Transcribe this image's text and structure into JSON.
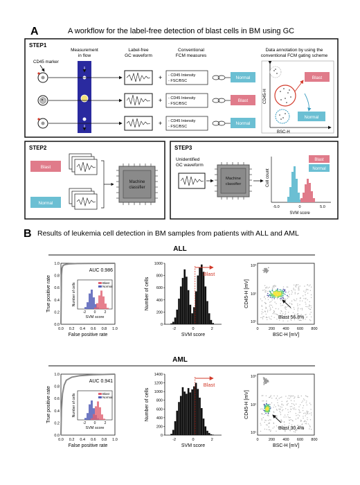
{
  "panelA": {
    "letter": "A",
    "title": "A workflow for the label-free detection of blast cells in BM using GC",
    "step1": {
      "label": "STEP1",
      "cd45_marker": "CD45 marker",
      "col_measure": [
        "Measurement",
        "in flow"
      ],
      "col_waveform": [
        "Label-free",
        "GC waveform"
      ],
      "col_fcm": [
        "Conventional",
        "FCM measures"
      ],
      "col_annotation": [
        "Data annotation by using the",
        "conventional FCM gating scheme"
      ],
      "plus": "+",
      "fcm_lines": [
        "- CD45 Intensity",
        "- FSC/BSC"
      ],
      "row_labels": [
        "Normal",
        "Blast",
        "Normal"
      ],
      "gate_blast": "Blast",
      "gate_normal": "Normal",
      "gate_xlabel": "BSC-H",
      "gate_ylabel": "CD45-H"
    },
    "step2": {
      "label": "STEP2",
      "blast": "Blast",
      "normal": "Normal",
      "classifier": [
        "Machine",
        "classifier"
      ]
    },
    "step3": {
      "label": "STEP3",
      "unidentified": [
        "Unidentified",
        "GC waveform"
      ],
      "classifier": [
        "Machine",
        "classifier"
      ],
      "hist_ylabel": "Cell count",
      "hist_xlabel": "SVM score",
      "hist_ticks": [
        "-5.0",
        "0",
        "5.0"
      ],
      "legend_blast": "Blast",
      "legend_normal": "Normal"
    }
  },
  "panelB": {
    "letter": "B",
    "title": "Results of leukemia cell detection in BM samples from patients with ALL and AML",
    "rows": [
      {
        "name": "ALL",
        "auc": "AUC 0.986",
        "roc_ylabel": "True positive rate",
        "roc_xlabel": "False positive rate",
        "roc_ticks": [
          "0.0",
          "0.2",
          "0.4",
          "0.6",
          "0.8",
          "1.0"
        ],
        "inset_ylabel": "Number of cells",
        "inset_xlabel": "SVM score",
        "inset_ticks": [
          "-2",
          "0",
          "2"
        ],
        "inset_legend": [
          "Blast",
          "Normal"
        ],
        "hist_ylabel": "Number of cells",
        "hist_xlabel": "SVM score",
        "hist_yticks": [
          "0",
          "200",
          "400",
          "600",
          "800",
          "1000"
        ],
        "hist_xticks": [
          "-2",
          "0",
          "2"
        ],
        "blast_arrow": "Blast",
        "scatter_ylabel": "CD45-H [mV]",
        "scatter_xlabel": "BSC-H [mV]",
        "scatter_yticks": [
          "10¹",
          "10²",
          "10³"
        ],
        "scatter_xticks": [
          "0",
          "200",
          "400",
          "600",
          "800"
        ],
        "blast_pct": "Blast 56.8%"
      },
      {
        "name": "AML",
        "auc": "AUC 0.941",
        "roc_ylabel": "True positive rate",
        "roc_xlabel": "False positive rate",
        "roc_ticks": [
          "0.0",
          "0.2",
          "0.4",
          "0.6",
          "0.8",
          "1.0"
        ],
        "inset_ylabel": "Number of cells",
        "inset_xlabel": "SVM score",
        "inset_ticks": [
          "-2",
          "0",
          "2"
        ],
        "inset_legend": [
          "Blast",
          "Normal"
        ],
        "hist_ylabel": "Number of cells",
        "hist_xlabel": "SVM score",
        "hist_yticks": [
          "0",
          "200",
          "400",
          "600",
          "800",
          "1000",
          "1200",
          "1400"
        ],
        "hist_xticks": [
          "-2",
          "0",
          "2"
        ],
        "blast_arrow": "Blast",
        "scatter_ylabel": "CD45-H [mV]",
        "scatter_xlabel": "BSC-H [mV]",
        "scatter_yticks": [
          "10¹",
          "10²",
          "10³"
        ],
        "scatter_xticks": [
          "0",
          "200",
          "400",
          "600",
          "800"
        ],
        "blast_pct": "Blast 30.4%"
      }
    ]
  },
  "chart_data": [
    {
      "type": "line",
      "panel": "ALL-ROC",
      "auc": 0.986,
      "xlim": [
        0,
        1
      ],
      "ylim": [
        0,
        1
      ],
      "x": [
        0,
        0.01,
        0.02,
        0.04,
        0.08,
        0.15,
        0.3,
        0.6,
        1.0
      ],
      "y": [
        0,
        0.8,
        0.92,
        0.965,
        0.98,
        0.99,
        0.995,
        0.998,
        1.0
      ]
    },
    {
      "type": "bar",
      "panel": "ALL-histogram",
      "xlabel": "SVM score",
      "ylabel": "Number of cells",
      "ylim": [
        0,
        1000
      ],
      "xlim": [
        -3,
        3
      ],
      "x": [
        -2.3,
        -2.1,
        -1.9,
        -1.7,
        -1.5,
        -1.3,
        -1.1,
        -0.9,
        -0.7,
        -0.5,
        -0.3,
        -0.1,
        0.1,
        0.3,
        0.5,
        0.7,
        0.9,
        1.1,
        1.3,
        1.5,
        1.7,
        1.9,
        2.1
      ],
      "values": [
        15,
        40,
        110,
        240,
        420,
        620,
        760,
        900,
        780,
        560,
        320,
        180,
        280,
        540,
        800,
        930,
        980,
        860,
        620,
        380,
        180,
        70,
        20
      ]
    },
    {
      "type": "bar",
      "panel": "AML-histogram",
      "xlabel": "SVM score",
      "ylabel": "Number of cells",
      "ylim": [
        0,
        1400
      ],
      "xlim": [
        -3,
        3
      ],
      "x": [
        -2.3,
        -2.1,
        -1.9,
        -1.7,
        -1.5,
        -1.3,
        -1.1,
        -0.9,
        -0.7,
        -0.5,
        -0.3,
        -0.1,
        0.1,
        0.3,
        0.5,
        0.7,
        0.9,
        1.1,
        1.3,
        1.5,
        1.7,
        1.9,
        2.1
      ],
      "values": [
        30,
        120,
        320,
        560,
        760,
        900,
        1100,
        1000,
        950,
        1080,
        980,
        1050,
        1120,
        1200,
        1060,
        860,
        620,
        380,
        200,
        100,
        50,
        20,
        10
      ]
    },
    {
      "type": "line",
      "panel": "AML-ROC",
      "auc": 0.941,
      "xlim": [
        0,
        1
      ],
      "ylim": [
        0,
        1
      ],
      "x": [
        0,
        0.01,
        0.03,
        0.06,
        0.1,
        0.2,
        0.35,
        0.6,
        1.0
      ],
      "y": [
        0,
        0.42,
        0.68,
        0.82,
        0.9,
        0.95,
        0.975,
        0.99,
        1.0
      ]
    }
  ],
  "colors": {
    "blast": "#e07b8a",
    "normal": "#6bbfd3",
    "flow": "#2a2a9f",
    "arrow_red": "#d23a2a"
  }
}
